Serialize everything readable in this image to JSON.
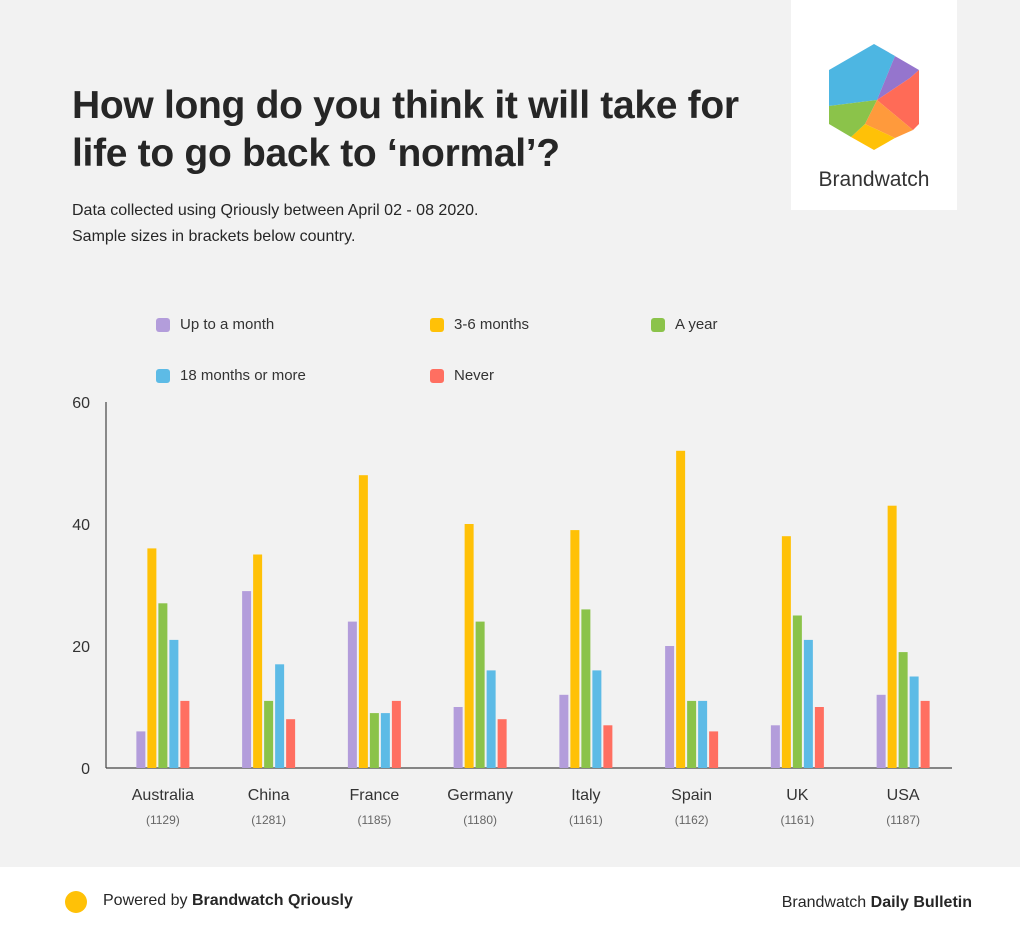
{
  "header": {
    "title": "How long do you think it will take for life to go back to ‘normal’?",
    "subtitle_line1": "Data collected using Qriously between April 02 - 08 2020.",
    "subtitle_line2": "Sample sizes in brackets below country."
  },
  "logo": {
    "text": "Brandwatch",
    "colors": [
      "#9575cd",
      "#ff6b57",
      "#ffc107",
      "#8bc34a",
      "#4db6e2",
      "#ff9a3c"
    ]
  },
  "footer": {
    "powered_prefix": "Powered by",
    "powered_brand": "Brandwatch Qriously",
    "bulletin_prefix": "Brandwatch",
    "bulletin_name": "Daily Bulletin",
    "dot_color": "#ffc107"
  },
  "chart_data": {
    "type": "bar",
    "title": "",
    "xlabel": "",
    "ylabel": "",
    "ylim": [
      0,
      60
    ],
    "yticks": [
      "0",
      "20",
      "40",
      "60"
    ],
    "categories": [
      "Australia",
      "China",
      "France",
      "Germany",
      "Italy",
      "Spain",
      "UK",
      "USA"
    ],
    "sample_sizes": [
      "(1129)",
      "(1281)",
      "(1185)",
      "(1180)",
      "(1161)",
      "(1162)",
      "(1161)",
      "(1187)"
    ],
    "legend_position": "top",
    "grid": false,
    "series": [
      {
        "name": "Up to a month",
        "color": "#b39ddb",
        "values": [
          6,
          29,
          24,
          10,
          12,
          20,
          7,
          12
        ]
      },
      {
        "name": "3-6 months",
        "color": "#ffc107",
        "values": [
          36,
          35,
          48,
          40,
          39,
          52,
          38,
          43
        ]
      },
      {
        "name": "A year",
        "color": "#8bc34a",
        "values": [
          27,
          11,
          9,
          24,
          26,
          11,
          25,
          19
        ]
      },
      {
        "name": "18 months or more",
        "color": "#5dbbe6",
        "values": [
          21,
          17,
          9,
          16,
          16,
          11,
          21,
          15
        ]
      },
      {
        "name": "Never",
        "color": "#ff6f61",
        "values": [
          11,
          8,
          11,
          8,
          7,
          6,
          10,
          11
        ]
      }
    ]
  }
}
